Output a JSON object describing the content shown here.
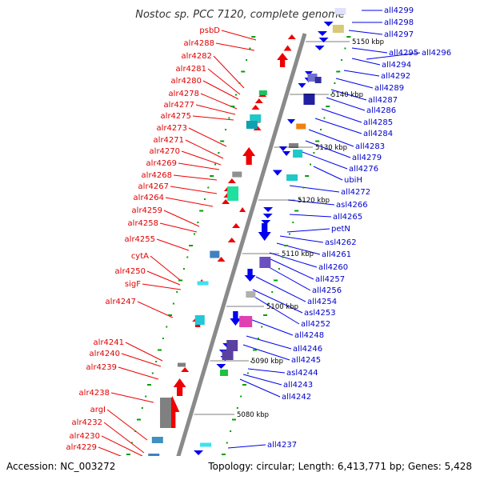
{
  "header": {
    "title": "Nostoc sp. PCC 7120, complete genome"
  },
  "footer": {
    "accession": "Accession: NC_003272",
    "topology": "Topology: circular; Length: 6,413,771 bp; Genes: 5,428"
  },
  "colors": {
    "forward_strand": "#ee0000",
    "reverse_strand": "#0000ee",
    "red_label": "#e00000",
    "blue_label": "#0000cc",
    "backbone": "#888888",
    "tick_dots": "#00a000"
  },
  "scale_marks": [
    "5150 kbp",
    "5140 kbp",
    "5130 kbp",
    "5120 kbp",
    "5110 kbp",
    "5100 kbp",
    "5090 kbp",
    "5080 kbp"
  ],
  "genes_left": [
    "psbD",
    "alr4288",
    "alr4282",
    "alr4281",
    "alr4280",
    "alr4278",
    "alr4277",
    "alr4275",
    "alr4273",
    "alr4271",
    "alr4270",
    "alr4269",
    "alr4268",
    "alr4267",
    "alr4264",
    "alr4259",
    "alr4258",
    "alr4255",
    "cytA",
    "alr4250",
    "sigF",
    "alr4247",
    "alr4241",
    "alr4240",
    "alr4239",
    "alr4238",
    "argI",
    "alr4232",
    "alr4230",
    "alr4229"
  ],
  "genes_right": [
    "all4299",
    "all4298",
    "all4297",
    "all4295",
    "all4296",
    "all4294",
    "all4292",
    "all4289",
    "all4287",
    "all4286",
    "all4285",
    "all4284",
    "all4283",
    "all4279",
    "all4276",
    "ubiH",
    "all4272",
    "asl4266",
    "all4265",
    "petN",
    "asl4262",
    "all4261",
    "all4260",
    "all4257",
    "all4256",
    "all4254",
    "asl4253",
    "all4252",
    "all4248",
    "all4246",
    "all4245",
    "asl4244",
    "all4243",
    "all4242",
    "all4237"
  ]
}
